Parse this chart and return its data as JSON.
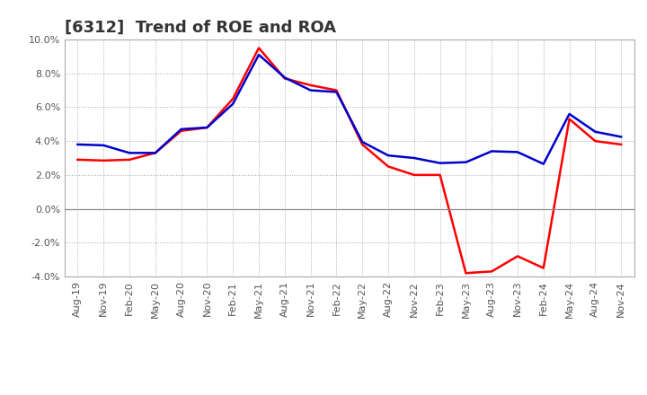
{
  "title": "[6312]  Trend of ROE and ROA",
  "x_labels": [
    "Aug-19",
    "Nov-19",
    "Feb-20",
    "May-20",
    "Aug-20",
    "Nov-20",
    "Feb-21",
    "May-21",
    "Aug-21",
    "Nov-21",
    "Feb-22",
    "May-22",
    "Aug-22",
    "Nov-22",
    "Feb-23",
    "May-23",
    "Aug-23",
    "Nov-23",
    "Feb-24",
    "May-24",
    "Aug-24",
    "Nov-24"
  ],
  "roe": [
    2.9,
    2.85,
    2.9,
    3.3,
    4.6,
    4.8,
    6.5,
    9.5,
    7.7,
    7.3,
    7.0,
    3.8,
    2.5,
    2.0,
    2.0,
    -3.8,
    -3.7,
    -2.8,
    -3.5,
    5.3,
    4.0,
    3.8
  ],
  "roa": [
    3.8,
    3.75,
    3.3,
    3.3,
    4.7,
    4.8,
    6.2,
    9.1,
    7.75,
    7.0,
    6.9,
    3.95,
    3.15,
    3.0,
    2.7,
    2.75,
    3.4,
    3.35,
    2.65,
    5.6,
    4.55,
    4.25
  ],
  "roe_color": "#FF0000",
  "roa_color": "#0000CC",
  "ylim": [
    -4.0,
    10.0
  ],
  "yticks": [
    -4.0,
    -2.0,
    0.0,
    2.0,
    4.0,
    6.0,
    8.0,
    10.0
  ],
  "bg_color": "#FFFFFF",
  "plot_bg_color": "#FFFFFF",
  "grid_color": "#AAAAAA",
  "line_width": 1.8,
  "title_fontsize": 13,
  "tick_fontsize": 8,
  "legend_fontsize": 9
}
